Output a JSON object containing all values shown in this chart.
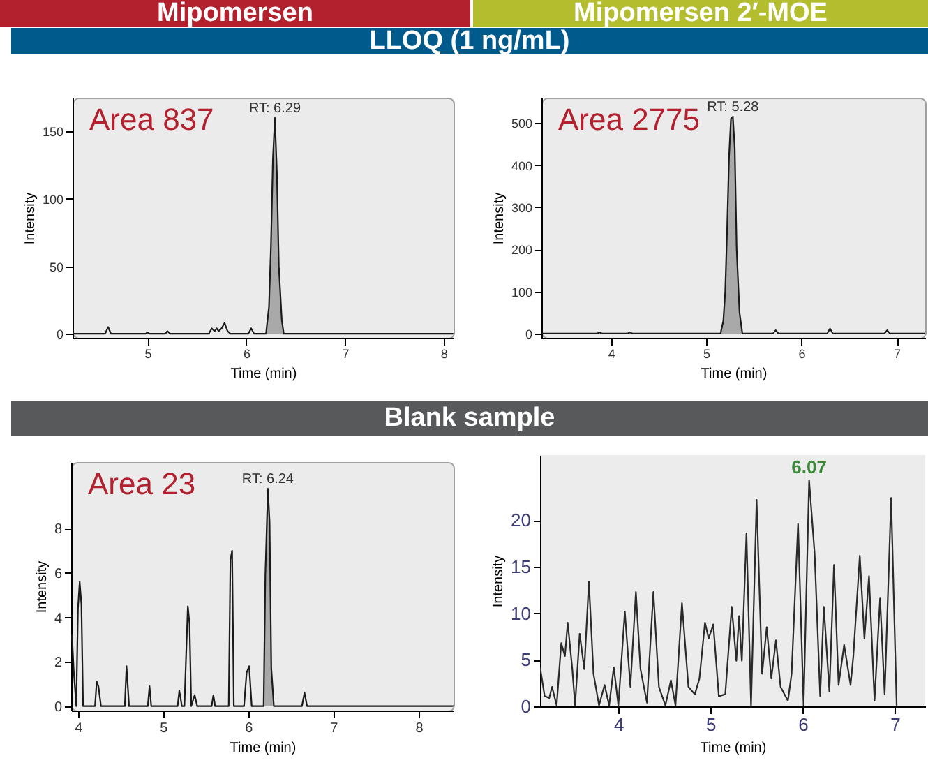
{
  "chart_data": [
    {
      "type": "line",
      "title": "Mipomersen",
      "subtitle": "LLOQ (1 ng/mL)",
      "xlabel": "Time (min)",
      "ylabel": "Intensity",
      "xlim": [
        4.24,
        8.1
      ],
      "xticks": [
        5,
        6,
        7,
        8
      ],
      "ylim": [
        -3,
        175
      ],
      "yticks": [
        0,
        50,
        100,
        150
      ],
      "annotations": [
        "Area 837",
        {
          "text": "RT: 6.29",
          "x": 6.29,
          "y": 160
        }
      ],
      "series": [
        {
          "type": "area",
          "color": "#a9a9a9",
          "x": [
            6.2,
            6.23,
            6.25,
            6.27,
            6.29,
            6.31,
            6.33,
            6.36,
            6.38
          ],
          "values": [
            0,
            20,
            65,
            130,
            160,
            120,
            50,
            10,
            0
          ]
        },
        {
          "color": "#1a1a1a",
          "x": [
            4.24,
            4.57,
            4.6,
            4.63,
            4.98,
            5.0,
            5.02,
            5.18,
            5.2,
            5.23,
            5.62,
            5.65,
            5.68,
            5.7,
            5.72,
            5.75,
            5.78,
            5.81,
            5.84,
            6.02,
            6.05,
            6.08,
            6.2,
            6.23,
            6.25,
            6.27,
            6.29,
            6.31,
            6.33,
            6.36,
            6.38,
            8.1
          ],
          "values": [
            0,
            0,
            5,
            0,
            0,
            1,
            0,
            0,
            2,
            0,
            0,
            4,
            2,
            4,
            2,
            4,
            8,
            2,
            0,
            0,
            4,
            0,
            0,
            20,
            65,
            130,
            160,
            120,
            50,
            10,
            0,
            0
          ]
        }
      ]
    },
    {
      "type": "line",
      "title": "Mipomersen 2′-MOE",
      "xlabel": "Time (min)",
      "ylabel": "Intensity",
      "xlim": [
        3.27,
        7.3
      ],
      "xticks": [
        4,
        5,
        6,
        7
      ],
      "ylim": [
        -10,
        560
      ],
      "yticks": [
        0,
        100,
        200,
        300,
        400,
        500
      ],
      "annotations": [
        "Area 2775",
        {
          "text": "RT: 5.28",
          "x": 5.28,
          "y": 515
        }
      ],
      "series": [
        {
          "type": "area",
          "color": "#a9a9a9",
          "x": [
            5.15,
            5.18,
            5.2,
            5.22,
            5.24,
            5.26,
            5.28,
            5.3,
            5.32,
            5.35,
            5.38
          ],
          "values": [
            0,
            30,
            100,
            250,
            420,
            510,
            515,
            440,
            200,
            50,
            0
          ]
        },
        {
          "color": "#1a1a1a",
          "x": [
            3.27,
            3.85,
            3.88,
            3.91,
            4.17,
            4.2,
            4.23,
            5.15,
            5.18,
            5.2,
            5.22,
            5.24,
            5.26,
            5.28,
            5.3,
            5.32,
            5.35,
            5.38,
            5.7,
            5.73,
            5.76,
            6.27,
            6.3,
            6.33,
            6.87,
            6.9,
            6.93,
            7.3
          ],
          "values": [
            0,
            0,
            3,
            0,
            0,
            3,
            0,
            0,
            30,
            100,
            250,
            420,
            510,
            515,
            440,
            200,
            50,
            0,
            0,
            8,
            0,
            0,
            12,
            0,
            0,
            8,
            0,
            0
          ]
        }
      ]
    },
    {
      "type": "line",
      "subtitle": "Blank sample",
      "xlabel": "Time (min)",
      "ylabel": "Intensity",
      "xlim": [
        3.92,
        8.41
      ],
      "xticks": [
        4,
        5,
        6,
        7,
        8
      ],
      "ylim": [
        -0.2,
        11
      ],
      "yticks": [
        0,
        2,
        4,
        6,
        8
      ],
      "annotations": [
        "Area 23",
        {
          "text": "RT: 6.24",
          "x": 6.23,
          "y": 9.8
        }
      ],
      "series": [
        {
          "type": "area",
          "color": "#a9a9a9",
          "x": [
            6.18,
            6.2,
            6.23,
            6.25,
            6.27,
            6.3
          ],
          "values": [
            0,
            5.9,
            9.8,
            8.3,
            1.7,
            0
          ]
        },
        {
          "color": "#1a1a1a",
          "x": [
            3.92,
            3.93,
            3.95,
            3.98,
            4.0,
            4.02,
            4.04,
            4.06,
            4.2,
            4.22,
            4.24,
            4.27,
            4.55,
            4.57,
            4.6,
            4.82,
            4.84,
            4.86,
            5.17,
            5.19,
            5.22,
            5.25,
            5.27,
            5.29,
            5.31,
            5.33,
            5.37,
            5.4,
            5.57,
            5.59,
            5.61,
            5.77,
            5.79,
            5.81,
            5.83,
            5.95,
            5.98,
            6.01,
            6.04,
            6.18,
            6.2,
            6.23,
            6.25,
            6.27,
            6.3,
            6.63,
            6.66,
            6.69,
            8.41
          ],
          "values": [
            3.0,
            3.2,
            1.6,
            0,
            4.4,
            5.6,
            4.6,
            0,
            0,
            1.1,
            0.9,
            0,
            0,
            1.8,
            0,
            0,
            0.9,
            0,
            0,
            0.7,
            0,
            0,
            2.3,
            4.5,
            3.7,
            0,
            0.5,
            0,
            0,
            0.5,
            0,
            0,
            6.6,
            7.0,
            0,
            0,
            1.5,
            1.8,
            0,
            0,
            5.9,
            9.8,
            8.3,
            1.7,
            0,
            0,
            0.6,
            0,
            0
          ]
        }
      ]
    },
    {
      "type": "line",
      "xlabel": "Time (min)",
      "ylabel": "Intensity",
      "xlim": [
        3.15,
        7.33
      ],
      "xticks": [
        4,
        5,
        6,
        7
      ],
      "ylim": [
        0,
        27
      ],
      "yticks": [
        0,
        5,
        10,
        15,
        20
      ],
      "annotations": [
        {
          "text": "6.07",
          "x": 6.07,
          "y": 24.3
        }
      ],
      "series": [
        {
          "color": "#2a2a2a",
          "x": [
            3.15,
            3.2,
            3.25,
            3.28,
            3.33,
            3.38,
            3.42,
            3.45,
            3.5,
            3.53,
            3.58,
            3.63,
            3.68,
            3.73,
            3.79,
            3.85,
            3.9,
            3.95,
            4.0,
            4.07,
            4.13,
            4.19,
            4.24,
            4.31,
            4.38,
            4.44,
            4.51,
            4.57,
            4.62,
            4.69,
            4.76,
            4.83,
            4.88,
            4.94,
            4.98,
            5.03,
            5.09,
            5.16,
            5.23,
            5.28,
            5.31,
            5.34,
            5.39,
            5.44,
            5.5,
            5.56,
            5.61,
            5.66,
            5.71,
            5.76,
            5.84,
            5.88,
            5.95,
            6.01,
            6.07,
            6.13,
            6.19,
            6.23,
            6.29,
            6.34,
            6.39,
            6.45,
            6.52,
            6.55,
            6.62,
            6.67,
            6.72,
            6.78,
            6.84,
            6.89,
            6.96,
            7.02
          ],
          "values": [
            4.2,
            1.1,
            0.9,
            2.1,
            0.1,
            6.8,
            5.4,
            9.0,
            4.0,
            0.1,
            7.8,
            4.0,
            13.4,
            3.5,
            0.1,
            2.3,
            0.1,
            4.2,
            0.1,
            10.2,
            2.1,
            12.3,
            4.0,
            0.4,
            12.3,
            2.1,
            0.1,
            2.8,
            0.1,
            11.1,
            2.1,
            1.3,
            3.0,
            9.0,
            7.3,
            8.8,
            1.1,
            1.3,
            10.7,
            4.9,
            9.7,
            4.9,
            18.6,
            0.1,
            22.2,
            3.5,
            8.5,
            3.0,
            7.1,
            2.1,
            0.6,
            3.5,
            19.6,
            0.1,
            24.3,
            16.4,
            1.1,
            10.7,
            1.6,
            15.2,
            2.3,
            6.6,
            2.3,
            5.4,
            16.2,
            7.3,
            14.0,
            0.6,
            11.6,
            1.3,
            22.4,
            0.1
          ]
        }
      ]
    }
  ]
}
